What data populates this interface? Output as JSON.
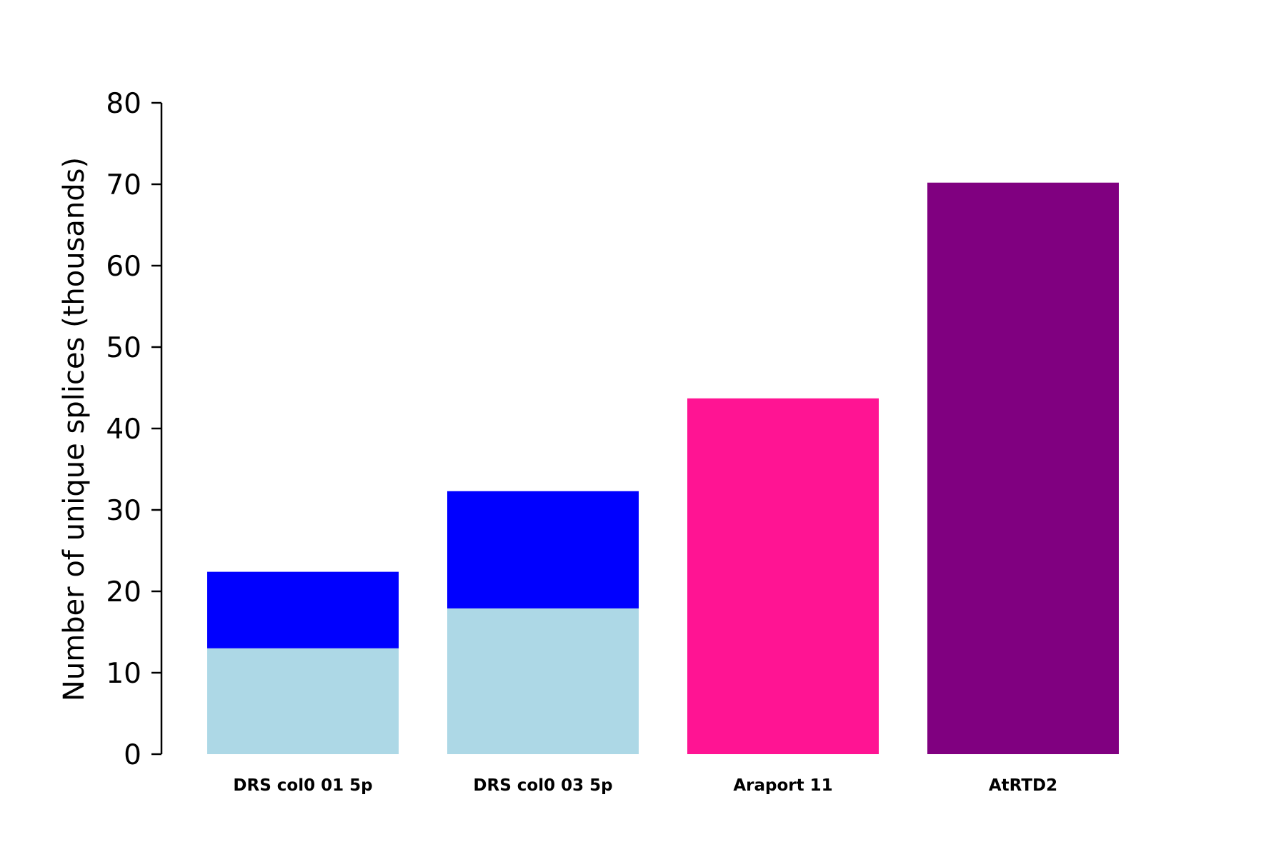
{
  "chart_data": {
    "type": "bar",
    "stacked": true,
    "title": "",
    "xlabel": "",
    "ylabel": "Number of unique splices (thousands)",
    "ylim": [
      0,
      80
    ],
    "yticks": [
      "0",
      "10",
      "20",
      "30",
      "40",
      "50",
      "60",
      "70",
      "80"
    ],
    "grid": false,
    "legend": "none",
    "categories": [
      "DRS col0 01 5p",
      "DRS col0 03 5p",
      "Araport 11",
      "AtRTD2"
    ],
    "bars": [
      {
        "segments": [
          {
            "value": 13.0,
            "color": "#add8e6"
          },
          {
            "value": 9.4,
            "color": "#0000ff"
          }
        ]
      },
      {
        "segments": [
          {
            "value": 17.9,
            "color": "#add8e6"
          },
          {
            "value": 14.4,
            "color": "#0000ff"
          }
        ]
      },
      {
        "segments": [
          {
            "value": 43.7,
            "color": "#ff1493"
          }
        ]
      },
      {
        "segments": [
          {
            "value": 70.2,
            "color": "#800080"
          }
        ]
      }
    ]
  }
}
